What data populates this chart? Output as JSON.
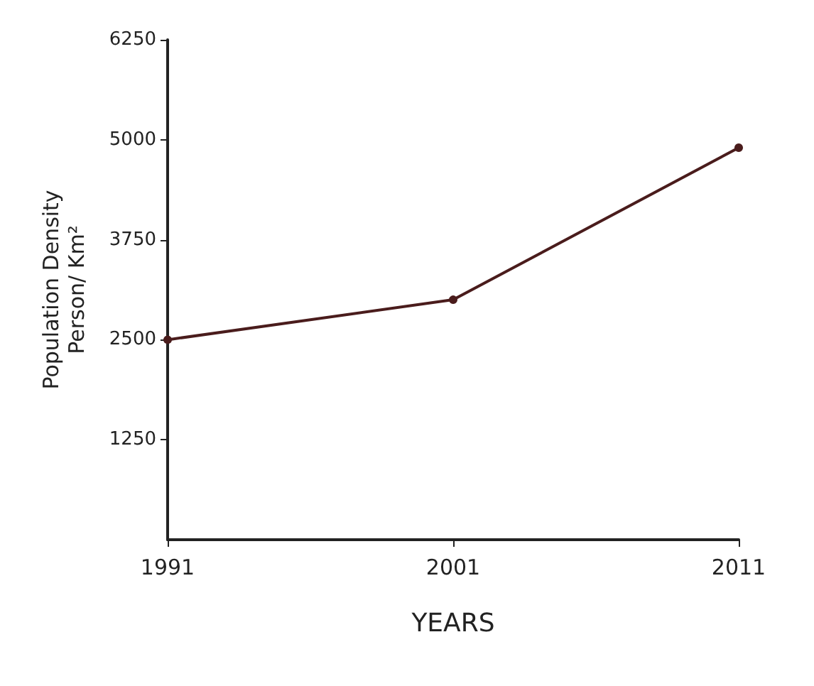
{
  "chart_data": {
    "type": "line",
    "xlabel": "YEARS",
    "ylabel": "Population Density\nPerson/ Km²",
    "x": [
      1991,
      2001,
      2011
    ],
    "series": [
      {
        "color": "#4a1c1c",
        "values": [
          2500,
          3000,
          4900
        ]
      }
    ],
    "xlim": [
      1991,
      2011
    ],
    "xticks": [
      1991,
      2001,
      2011
    ],
    "ylim": [
      0,
      6250
    ],
    "yticks": [
      1250,
      2500,
      3750,
      5000,
      6250
    ],
    "grid": false,
    "marker": "circle",
    "line_style": "solid"
  }
}
